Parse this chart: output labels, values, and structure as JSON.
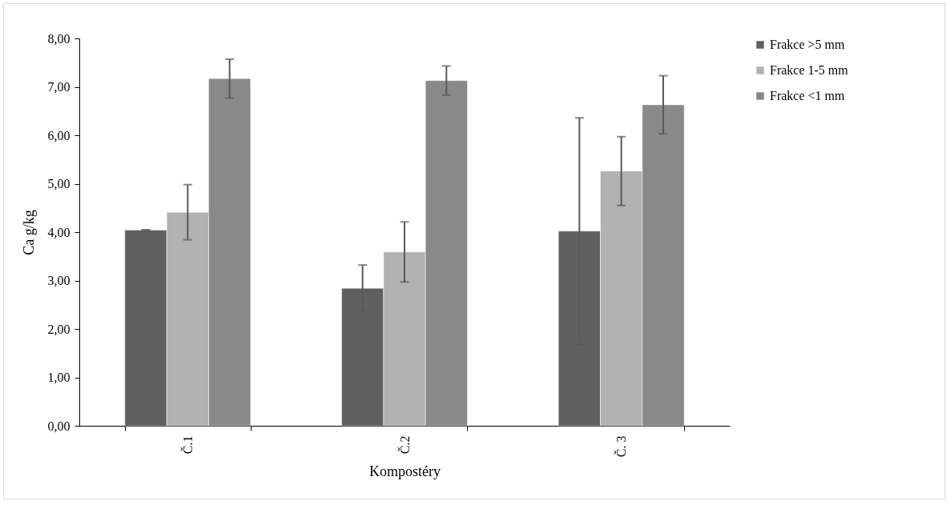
{
  "chart_data": {
    "type": "bar",
    "xlabel": "Kompostéry",
    "ylabel": "Ca g/kg",
    "categories": [
      "Č.1",
      "Č.2",
      "Č. 3"
    ],
    "series": [
      {
        "name": "Frakce >5 mm",
        "color": "#5f5f5f",
        "values": [
          4.04,
          2.84,
          4.02
        ],
        "errors": [
          0.01,
          0.48,
          2.34
        ]
      },
      {
        "name": "Frakce 1-5 mm",
        "color": "#b2b2b2",
        "values": [
          4.41,
          3.59,
          5.26
        ],
        "errors": [
          0.57,
          0.62,
          0.71
        ]
      },
      {
        "name": "Frakce <1 mm",
        "color": "#898989",
        "values": [
          7.17,
          7.13,
          6.63
        ],
        "errors": [
          0.4,
          0.3,
          0.6
        ]
      }
    ],
    "ylim": [
      0,
      8
    ],
    "yticks": [
      {
        "value": 0,
        "label": "0,00"
      },
      {
        "value": 1,
        "label": "1,00"
      },
      {
        "value": 2,
        "label": "2,00"
      },
      {
        "value": 3,
        "label": "3,00"
      },
      {
        "value": 4,
        "label": "4,00"
      },
      {
        "value": 5,
        "label": "5,00"
      },
      {
        "value": 6,
        "label": "6,00"
      },
      {
        "value": 7,
        "label": "7,00"
      },
      {
        "value": 8,
        "label": "8,00"
      }
    ],
    "grid": false,
    "legend": "right"
  }
}
